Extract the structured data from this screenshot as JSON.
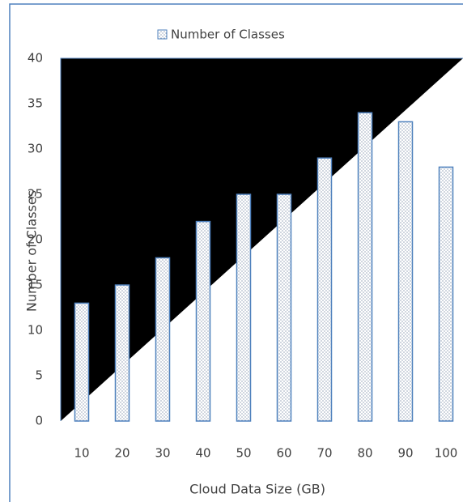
{
  "chart_data": {
    "type": "bar",
    "legend": "Number of Classes",
    "legend_position": "top",
    "x_label": "Cloud Data Size (GB)",
    "y_label": "Number of Classes",
    "categories": [
      "10",
      "20",
      "30",
      "40",
      "50",
      "60",
      "70",
      "80",
      "90",
      "100"
    ],
    "values": [
      13,
      15,
      18,
      22,
      25,
      25,
      29,
      34,
      33,
      28
    ],
    "color": "#4f81bd",
    "ylim": [
      0,
      40
    ],
    "yticks": [
      0,
      5,
      10,
      15,
      20,
      25,
      30,
      35,
      40
    ],
    "grid": false
  }
}
